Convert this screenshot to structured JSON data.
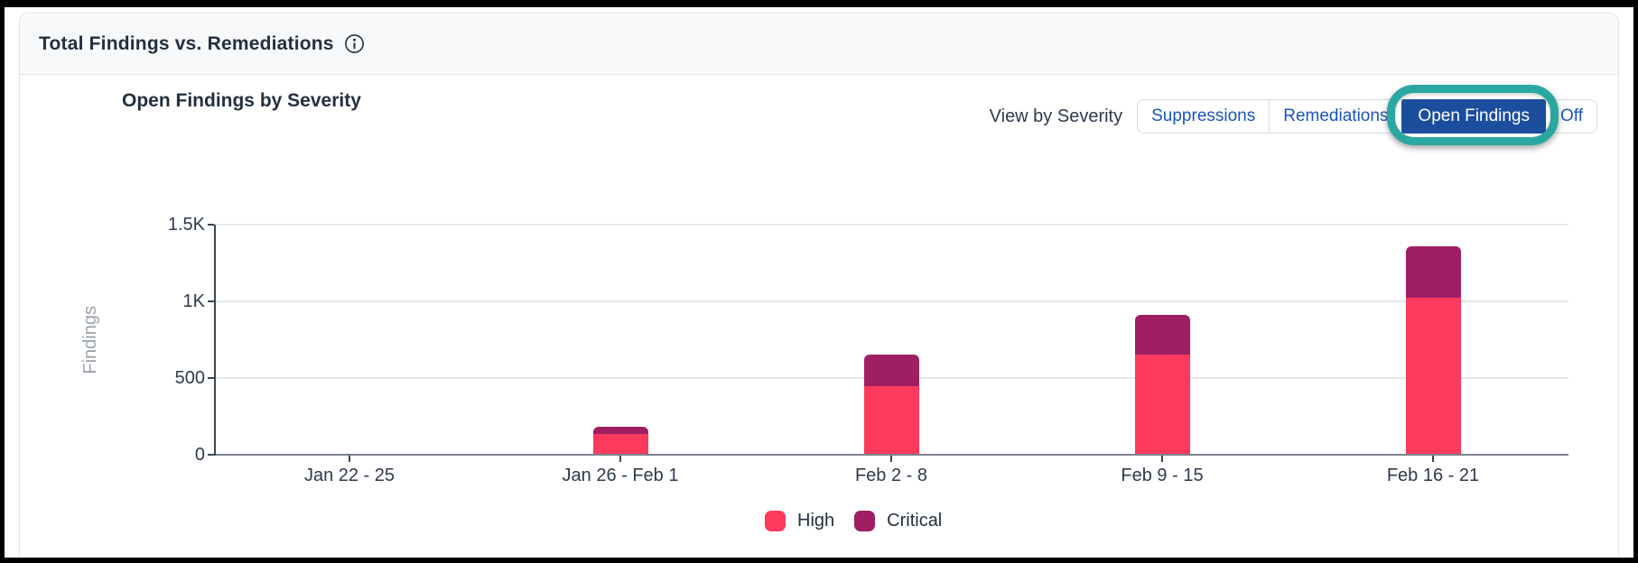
{
  "header": {
    "title": "Total Findings vs. Remediations"
  },
  "controls": {
    "label": "View by Severity",
    "options": [
      {
        "label": "Suppressions",
        "selected": false,
        "highlighted": false
      },
      {
        "label": "Remediations",
        "selected": false,
        "highlighted": false
      },
      {
        "label": "Open Findings",
        "selected": true,
        "highlighted": true
      },
      {
        "label": "Off",
        "selected": false,
        "highlighted": false
      }
    ]
  },
  "colors": {
    "selected_button_bg": "#1c4e9e",
    "button_text_blue": "#1b54be",
    "highlight_ring_teal": "#2ba7a1",
    "high_pink": "#fb3a5d",
    "critical_maroon": "#a01f62",
    "header_bg": "#f8f9fa",
    "text_navy": "#24303f"
  },
  "chart_data": {
    "type": "bar",
    "stacked": true,
    "title": "Open Findings by Severity",
    "ylabel": "Findings",
    "xlabel": "",
    "categories": [
      "Jan 22 - 25",
      "Jan 26 - Feb 1",
      "Feb 2 - 8",
      "Feb 9 - 15",
      "Feb 16 - 21"
    ],
    "series": [
      {
        "name": "High",
        "color": "#fb3a5d",
        "values": [
          0,
          130,
          440,
          650,
          1020
        ]
      },
      {
        "name": "Critical",
        "color": "#a01f62",
        "values": [
          0,
          45,
          205,
          255,
          335
        ]
      }
    ],
    "ylim": [
      0,
      1500
    ],
    "yticks": [
      {
        "value": 0,
        "label": "0"
      },
      {
        "value": 500,
        "label": "500"
      },
      {
        "value": 1000,
        "label": "1K"
      },
      {
        "value": 1500,
        "label": "1.5K"
      }
    ],
    "grid": true,
    "legend_position": "bottom"
  }
}
